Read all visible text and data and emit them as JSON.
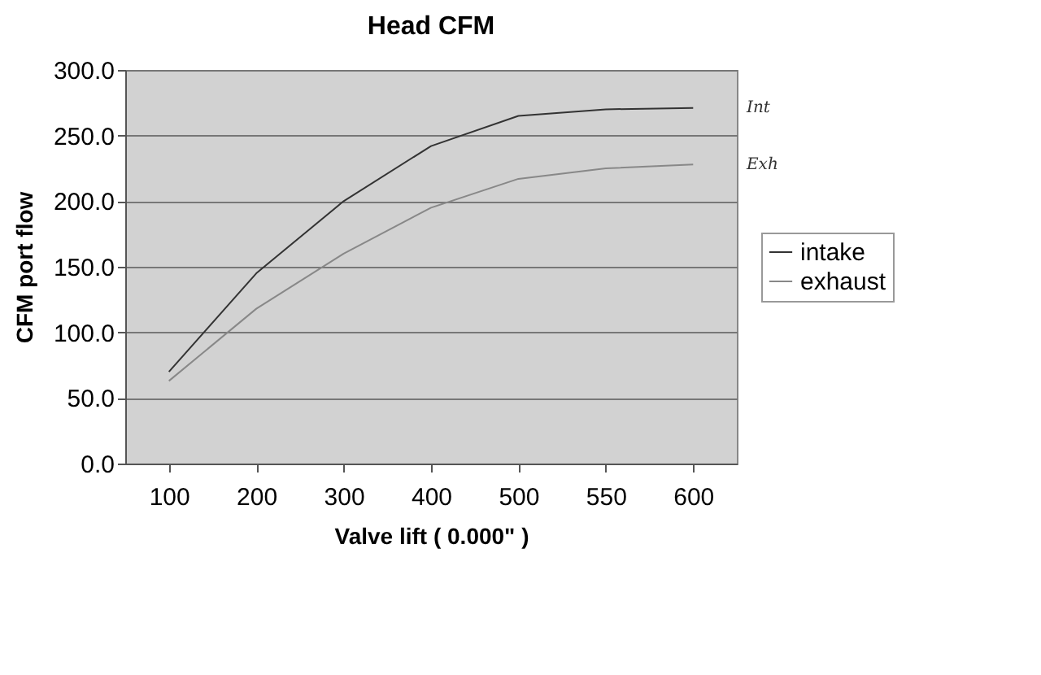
{
  "chart_data": {
    "type": "line",
    "title": "Head CFM",
    "xlabel": "Valve lift ( 0.000\" )",
    "ylabel": "CFM port flow",
    "categories": [
      "100",
      "200",
      "300",
      "400",
      "500",
      "550",
      "600"
    ],
    "series": [
      {
        "name": "intake",
        "color": "#333333",
        "values": [
          70,
          145,
          200,
          242,
          265,
          270,
          271
        ]
      },
      {
        "name": "exhaust",
        "color": "#888888",
        "values": [
          63,
          118,
          160,
          195,
          217,
          225,
          228
        ]
      }
    ],
    "ylim": [
      0,
      300
    ],
    "yticks": [
      {
        "value": 0,
        "label": "0.0"
      },
      {
        "value": 50,
        "label": "50.0"
      },
      {
        "value": 100,
        "label": "100.0"
      },
      {
        "value": 150,
        "label": "150.0"
      },
      {
        "value": 200,
        "label": "200.0"
      },
      {
        "value": 250,
        "label": "250.0"
      },
      {
        "value": 300,
        "label": "300.0"
      }
    ],
    "grid": "y",
    "legend": "right",
    "marker": "none",
    "line_style": "solid",
    "annotations": [
      "Int",
      "Exh"
    ]
  }
}
